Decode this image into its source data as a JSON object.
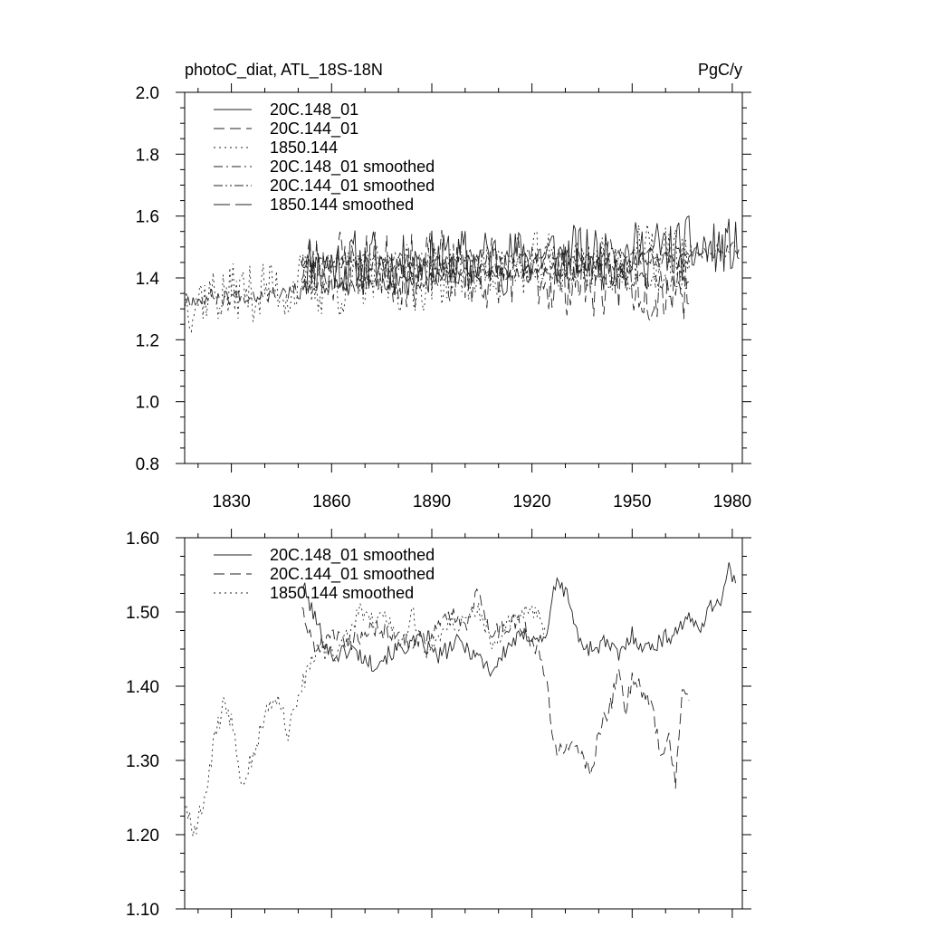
{
  "chart_data": [
    {
      "type": "line",
      "title": "photoC_diat, ATL_18S-18N",
      "units": "PgC/y",
      "xlim": [
        1816,
        1983
      ],
      "ylim": [
        0.8,
        2.0
      ],
      "yticks": [
        "0.8",
        "1.0",
        "1.2",
        "1.4",
        "1.6",
        "1.8",
        "2.0"
      ],
      "xticks": [
        "1830",
        "1860",
        "1890",
        "1920",
        "1950",
        "1980"
      ],
      "series": [
        {
          "name": "20C.148_01",
          "style": "solid",
          "start": 1851,
          "end": 1982,
          "base": 1.44,
          "trend": 0.0004,
          "amp": 0.13,
          "seed": 11
        },
        {
          "name": "20C.144_01",
          "style": "dash",
          "start": 1851,
          "end": 1967,
          "base": 1.45,
          "trend": -0.0006,
          "amp": 0.15,
          "seed": 23
        },
        {
          "name": "1850.144",
          "style": "dot",
          "start": 1816,
          "end": 1968,
          "base": 1.34,
          "trend": 0.0009,
          "amp": 0.13,
          "seed": 37
        },
        {
          "name": "20C.148_01 smoothed",
          "style": "dashdot",
          "start": 1851,
          "end": 1982,
          "base": 1.45,
          "trend": 0.0003,
          "amp": 0.03,
          "seed": 41
        },
        {
          "name": "20C.144_01 smoothed",
          "style": "dashdotdot",
          "start": 1851,
          "end": 1967,
          "base": 1.46,
          "trend": -0.0007,
          "amp": 0.035,
          "seed": 53
        },
        {
          "name": "1850.144 smoothed",
          "style": "longdash",
          "start": 1816,
          "end": 1968,
          "base": 1.33,
          "trend": 0.0009,
          "amp": 0.035,
          "seed": 67
        }
      ]
    },
    {
      "type": "line",
      "title": "",
      "units": "",
      "xlim": [
        1816,
        1983
      ],
      "ylim": [
        1.1,
        1.6
      ],
      "yticks": [
        "1.10",
        "1.20",
        "1.30",
        "1.40",
        "1.50",
        "1.60"
      ],
      "xticks": [],
      "series": [
        {
          "name": "20C.148_01 smoothed",
          "style": "solid",
          "anchors": [
            [
              1851,
              1.54
            ],
            [
              1856,
              1.48
            ],
            [
              1860,
              1.44
            ],
            [
              1866,
              1.45
            ],
            [
              1872,
              1.43
            ],
            [
              1880,
              1.45
            ],
            [
              1886,
              1.46
            ],
            [
              1892,
              1.44
            ],
            [
              1898,
              1.46
            ],
            [
              1904,
              1.44
            ],
            [
              1908,
              1.42
            ],
            [
              1914,
              1.46
            ],
            [
              1920,
              1.47
            ],
            [
              1924,
              1.46
            ],
            [
              1926,
              1.52
            ],
            [
              1928,
              1.54
            ],
            [
              1931,
              1.52
            ],
            [
              1934,
              1.46
            ],
            [
              1938,
              1.45
            ],
            [
              1942,
              1.46
            ],
            [
              1946,
              1.44
            ],
            [
              1950,
              1.47
            ],
            [
              1954,
              1.45
            ],
            [
              1958,
              1.46
            ],
            [
              1962,
              1.47
            ],
            [
              1966,
              1.49
            ],
            [
              1970,
              1.48
            ],
            [
              1974,
              1.51
            ],
            [
              1977,
              1.52
            ],
            [
              1979,
              1.56
            ],
            [
              1981,
              1.53
            ]
          ],
          "noise": 0.012,
          "seed": 101
        },
        {
          "name": "20C.144_01 smoothed",
          "style": "dash",
          "anchors": [
            [
              1851,
              1.51
            ],
            [
              1855,
              1.45
            ],
            [
              1860,
              1.47
            ],
            [
              1866,
              1.46
            ],
            [
              1872,
              1.48
            ],
            [
              1878,
              1.47
            ],
            [
              1884,
              1.46
            ],
            [
              1890,
              1.47
            ],
            [
              1896,
              1.5
            ],
            [
              1900,
              1.48
            ],
            [
              1904,
              1.53
            ],
            [
              1908,
              1.47
            ],
            [
              1912,
              1.48
            ],
            [
              1916,
              1.49
            ],
            [
              1920,
              1.46
            ],
            [
              1922,
              1.45
            ],
            [
              1924,
              1.42
            ],
            [
              1926,
              1.34
            ],
            [
              1928,
              1.31
            ],
            [
              1932,
              1.33
            ],
            [
              1936,
              1.3
            ],
            [
              1938,
              1.28
            ],
            [
              1940,
              1.34
            ],
            [
              1944,
              1.38
            ],
            [
              1946,
              1.43
            ],
            [
              1948,
              1.37
            ],
            [
              1950,
              1.41
            ],
            [
              1954,
              1.39
            ],
            [
              1956,
              1.37
            ],
            [
              1959,
              1.3
            ],
            [
              1961,
              1.33
            ],
            [
              1963,
              1.27
            ],
            [
              1965,
              1.4
            ],
            [
              1967,
              1.39
            ]
          ],
          "noise": 0.012,
          "seed": 202
        },
        {
          "name": "1850.144 smoothed",
          "style": "dot",
          "anchors": [
            [
              1816,
              1.24
            ],
            [
              1819,
              1.2
            ],
            [
              1822,
              1.25
            ],
            [
              1825,
              1.33
            ],
            [
              1828,
              1.38
            ],
            [
              1831,
              1.34
            ],
            [
              1833,
              1.27
            ],
            [
              1836,
              1.3
            ],
            [
              1840,
              1.36
            ],
            [
              1843,
              1.39
            ],
            [
              1847,
              1.34
            ],
            [
              1851,
              1.4
            ],
            [
              1856,
              1.45
            ],
            [
              1860,
              1.44
            ],
            [
              1864,
              1.46
            ],
            [
              1868,
              1.5
            ],
            [
              1872,
              1.49
            ],
            [
              1876,
              1.5
            ],
            [
              1880,
              1.45
            ],
            [
              1884,
              1.5
            ],
            [
              1888,
              1.44
            ],
            [
              1892,
              1.47
            ],
            [
              1896,
              1.49
            ],
            [
              1900,
              1.48
            ],
            [
              1904,
              1.5
            ],
            [
              1908,
              1.46
            ],
            [
              1912,
              1.48
            ],
            [
              1916,
              1.49
            ],
            [
              1920,
              1.5
            ],
            [
              1924,
              1.48
            ]
          ],
          "noise": 0.014,
          "seed": 303
        }
      ]
    }
  ]
}
